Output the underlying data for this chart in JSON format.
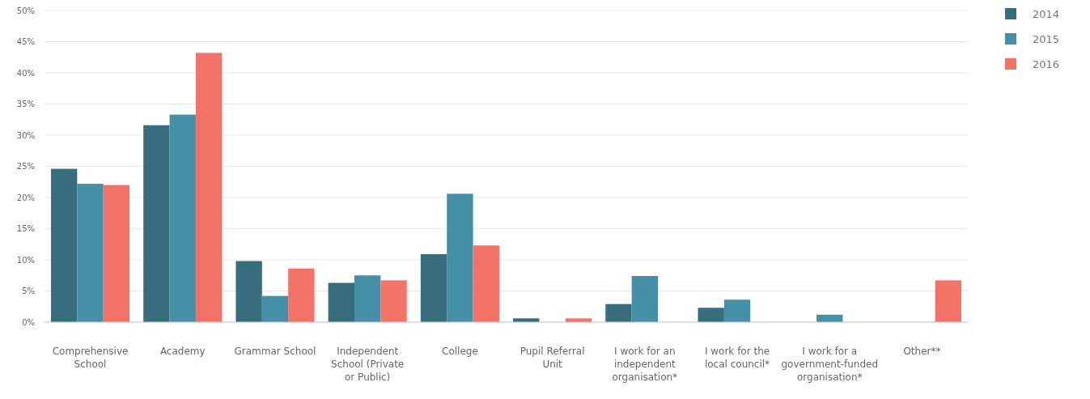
{
  "chart_data": {
    "type": "bar",
    "categories": [
      "Comprehensive School",
      "Academy",
      "Grammar School",
      "Independent School (Private or Public)",
      "College",
      "Pupil Referral Unit",
      "I work for an independent organisation*",
      "I work for the local council*",
      "I work for a government-funded organisation*",
      "Other**"
    ],
    "series": [
      {
        "name": "2014",
        "color": "#366e7e",
        "values": [
          24.6,
          31.6,
          9.8,
          6.3,
          10.9,
          0.6,
          2.9,
          2.3,
          null,
          null
        ]
      },
      {
        "name": "2015",
        "color": "#4590a6",
        "values": [
          22.2,
          33.3,
          4.2,
          7.5,
          20.6,
          null,
          7.4,
          3.6,
          1.2,
          null
        ]
      },
      {
        "name": "2016",
        "color": "#f37369",
        "values": [
          22.0,
          43.2,
          8.6,
          6.7,
          12.3,
          0.6,
          null,
          null,
          null,
          6.7
        ]
      }
    ],
    "ylim": [
      0,
      50
    ],
    "yticks": [
      {
        "value": 0,
        "label": "0%"
      },
      {
        "value": 5,
        "label": "5%"
      },
      {
        "value": 10,
        "label": "10%"
      },
      {
        "value": 15,
        "label": "15%"
      },
      {
        "value": 20,
        "label": "20%"
      },
      {
        "value": 25,
        "label": "25%"
      },
      {
        "value": 30,
        "label": "30%"
      },
      {
        "value": 35,
        "label": "35%"
      },
      {
        "value": 40,
        "label": "40%"
      },
      {
        "value": 45,
        "label": "45%"
      },
      {
        "value": 50,
        "label": "50%"
      }
    ],
    "grid": "y",
    "legend": "right"
  }
}
